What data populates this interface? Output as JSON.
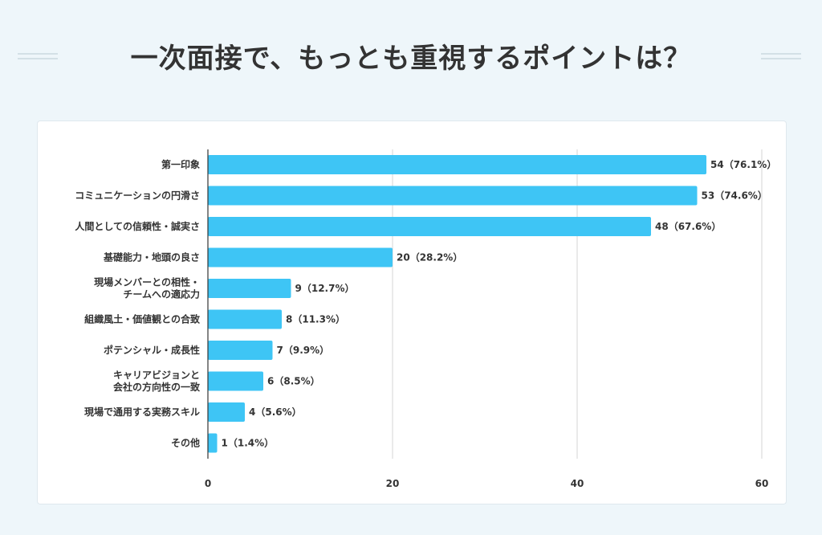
{
  "title": "一次面接で、もっとも重視するポイントは？",
  "colors": {
    "bar": "#3ec5f5",
    "grid": "#d5d5d5",
    "text": "#333333",
    "background": "#eef6fa"
  },
  "chart_data": {
    "type": "bar",
    "orientation": "horizontal",
    "categories": [
      [
        "第一印象"
      ],
      [
        "コミュニケーションの円滑さ"
      ],
      [
        "人間としての信頼性・誠実さ"
      ],
      [
        "基礎能力・地頭の良さ"
      ],
      [
        "現場メンバーとの相性・",
        "チームへの適応力"
      ],
      [
        "組織風土・価値観との合致"
      ],
      [
        "ポテンシャル・成長性"
      ],
      [
        "キャリアビジョンと",
        "会社の方向性の一致"
      ],
      [
        "現場で通用する実務スキル"
      ],
      [
        "その他"
      ]
    ],
    "values": [
      54,
      53,
      48,
      20,
      9,
      8,
      7,
      6,
      4,
      1
    ],
    "value_labels": [
      "54（76.1%）",
      "53（74.6%）",
      "48（67.6%）",
      "20（28.2%）",
      "9（12.7%）",
      "8（11.3%）",
      "7（9.9%）",
      "6（8.5%）",
      "4（5.6%）",
      "1（1.4%）"
    ],
    "xlim": [
      0,
      60
    ],
    "xticks": [
      0,
      20,
      40,
      60
    ],
    "grid": true
  }
}
